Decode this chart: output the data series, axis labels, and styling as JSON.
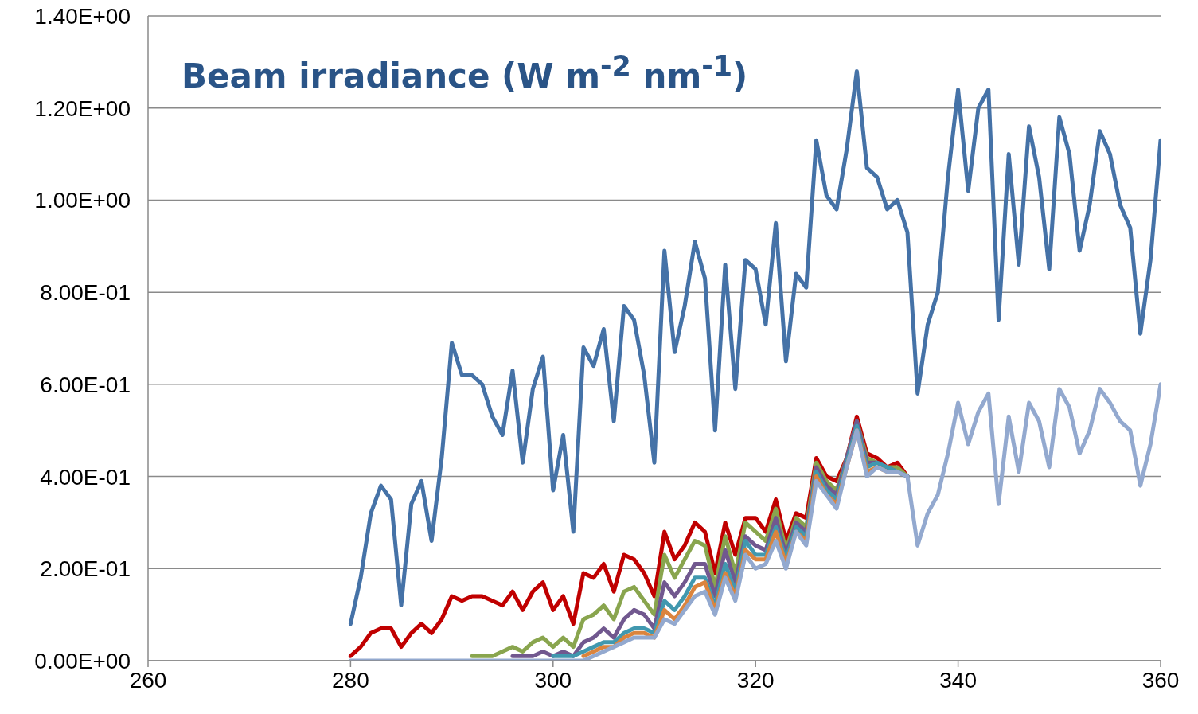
{
  "chart_data": {
    "type": "line",
    "title": "Beam irradiance (W m$^{-2}$ nm$^{-1}$)",
    "x": [
      280,
      281,
      282,
      283,
      284,
      285,
      286,
      287,
      288,
      289,
      290,
      291,
      292,
      293,
      294,
      295,
      296,
      297,
      298,
      299,
      300,
      301,
      302,
      303,
      304,
      305,
      306,
      307,
      308,
      309,
      310,
      311,
      312,
      313,
      314,
      315,
      316,
      317,
      318,
      319,
      320,
      321,
      322,
      323,
      324,
      325,
      326,
      327,
      328,
      329,
      330,
      331,
      332,
      333,
      334,
      335,
      336,
      337,
      338,
      339,
      340,
      341,
      342,
      343,
      344,
      345,
      346,
      347,
      348,
      349,
      350,
      351,
      352,
      353,
      354,
      355,
      356,
      357,
      358,
      359,
      360
    ],
    "xlim": [
      260,
      360
    ],
    "xticks": [
      260,
      280,
      300,
      320,
      340,
      360
    ],
    "ylim": [
      0,
      1.4
    ],
    "yticks": [
      {
        "value": 0,
        "label": "0.00E+00"
      },
      {
        "value": 0.2,
        "label": "2.00E-01"
      },
      {
        "value": 0.4,
        "label": "4.00E-01"
      },
      {
        "value": 0.6,
        "label": "6.00E-01"
      },
      {
        "value": 0.8,
        "label": "8.00E-01"
      },
      {
        "value": 1.0,
        "label": "1.00E+00"
      },
      {
        "value": 1.2,
        "label": "1.20E+00"
      },
      {
        "value": 1.4,
        "label": "1.40E+00"
      }
    ],
    "grid": "y",
    "marker": "none",
    "line_style": "solid",
    "series": [
      {
        "color": "#4572a7",
        "values": [
          0.08,
          0.18,
          0.32,
          0.38,
          0.35,
          0.12,
          0.34,
          0.39,
          0.26,
          0.44,
          0.69,
          0.62,
          0.62,
          0.6,
          0.53,
          0.49,
          0.63,
          0.43,
          0.59,
          0.66,
          0.37,
          0.49,
          0.28,
          0.68,
          0.64,
          0.72,
          0.52,
          0.77,
          0.74,
          0.62,
          0.43,
          0.89,
          0.67,
          0.77,
          0.91,
          0.83,
          0.5,
          0.86,
          0.59,
          0.87,
          0.85,
          0.73,
          0.95,
          0.65,
          0.84,
          0.81,
          1.13,
          1.01,
          0.98,
          1.11,
          1.28,
          1.07,
          1.05,
          0.98,
          1.0,
          0.93,
          0.58,
          0.73,
          0.8,
          1.05,
          1.24,
          1.02,
          1.2,
          1.24,
          0.74,
          1.1,
          0.86,
          1.16,
          1.05,
          0.85,
          1.18,
          1.1,
          0.89,
          0.99,
          1.15,
          1.1,
          0.99,
          0.94,
          0.71,
          0.87,
          1.13
        ]
      },
      {
        "color": "#c00000",
        "values": [
          0.01,
          0.03,
          0.06,
          0.07,
          0.07,
          0.03,
          0.06,
          0.08,
          0.06,
          0.09,
          0.14,
          0.13,
          0.14,
          0.14,
          0.13,
          0.12,
          0.15,
          0.11,
          0.15,
          0.17,
          0.11,
          0.14,
          0.08,
          0.19,
          0.18,
          0.21,
          0.15,
          0.23,
          0.22,
          0.19,
          0.14,
          0.28,
          0.22,
          0.25,
          0.3,
          0.28,
          0.19,
          0.3,
          0.23,
          0.31,
          0.31,
          0.28,
          0.35,
          0.26,
          0.32,
          0.31,
          0.44,
          0.4,
          0.39,
          0.44,
          0.53,
          0.45,
          0.44,
          0.42,
          0.43,
          0.4,
          null,
          null,
          null,
          null,
          null,
          null,
          null,
          null,
          null,
          null,
          null,
          null,
          null,
          null,
          null,
          null,
          null,
          null,
          null,
          null,
          null,
          null,
          null,
          null,
          null
        ]
      },
      {
        "color": "#89a54e",
        "values": [
          null,
          null,
          null,
          null,
          null,
          null,
          null,
          null,
          null,
          null,
          null,
          null,
          0.01,
          0.01,
          0.01,
          0.02,
          0.03,
          0.02,
          0.04,
          0.05,
          0.03,
          0.05,
          0.03,
          0.09,
          0.1,
          0.12,
          0.09,
          0.15,
          0.16,
          0.13,
          0.1,
          0.23,
          0.18,
          0.22,
          0.26,
          0.25,
          0.16,
          0.27,
          0.19,
          0.3,
          0.28,
          0.26,
          0.33,
          0.24,
          0.31,
          0.29,
          0.43,
          0.39,
          0.37,
          0.44,
          0.52,
          0.44,
          0.43,
          0.42,
          0.42,
          0.4,
          null,
          null,
          null,
          null,
          null,
          null,
          null,
          null,
          null,
          null,
          null,
          null,
          null,
          null,
          null,
          null,
          null,
          null,
          null,
          null,
          null,
          null,
          null,
          null,
          null
        ]
      },
      {
        "color": "#71588f",
        "values": [
          null,
          null,
          null,
          null,
          null,
          null,
          null,
          null,
          null,
          null,
          null,
          null,
          null,
          null,
          null,
          null,
          0.01,
          0.01,
          0.01,
          0.02,
          0.01,
          0.02,
          0.01,
          0.04,
          0.05,
          0.07,
          0.05,
          0.09,
          0.11,
          0.1,
          0.07,
          0.17,
          0.14,
          0.17,
          0.21,
          0.21,
          0.14,
          0.24,
          0.17,
          0.27,
          0.25,
          0.24,
          0.31,
          0.23,
          0.3,
          0.28,
          0.42,
          0.38,
          0.36,
          0.44,
          0.52,
          0.43,
          0.43,
          0.42,
          0.41,
          0.4,
          null,
          null,
          null,
          null,
          null,
          null,
          null,
          null,
          null,
          null,
          null,
          null,
          null,
          null,
          null,
          null,
          null,
          null,
          null,
          null,
          null,
          null,
          null,
          null,
          null
        ]
      },
      {
        "color": "#4198af",
        "values": [
          null,
          null,
          null,
          null,
          null,
          null,
          null,
          null,
          null,
          null,
          null,
          null,
          null,
          null,
          null,
          null,
          null,
          null,
          null,
          null,
          0.01,
          0.01,
          0.01,
          0.02,
          0.03,
          0.04,
          0.04,
          0.06,
          0.07,
          0.07,
          0.06,
          0.13,
          0.11,
          0.14,
          0.18,
          0.18,
          0.12,
          0.21,
          0.15,
          0.26,
          0.23,
          0.23,
          0.29,
          0.22,
          0.29,
          0.27,
          0.41,
          0.37,
          0.35,
          0.43,
          0.51,
          0.42,
          0.43,
          0.42,
          0.41,
          0.4,
          null,
          null,
          null,
          null,
          null,
          null,
          null,
          null,
          null,
          null,
          null,
          null,
          null,
          null,
          null,
          null,
          null,
          null,
          null,
          null,
          null,
          null,
          null,
          null,
          null
        ]
      },
      {
        "color": "#db843d",
        "values": [
          null,
          null,
          null,
          null,
          null,
          null,
          null,
          null,
          null,
          null,
          null,
          null,
          null,
          null,
          null,
          null,
          null,
          null,
          null,
          null,
          null,
          null,
          null,
          0.01,
          0.02,
          0.03,
          0.03,
          0.05,
          0.06,
          0.06,
          0.05,
          0.11,
          0.09,
          0.12,
          0.16,
          0.17,
          0.11,
          0.19,
          0.14,
          0.24,
          0.22,
          0.22,
          0.28,
          0.21,
          0.28,
          0.26,
          0.4,
          0.36,
          0.34,
          0.42,
          0.5,
          0.41,
          0.42,
          0.41,
          null,
          null,
          null,
          null,
          null,
          null,
          null,
          null,
          null,
          null,
          null,
          null,
          null,
          null,
          null,
          null,
          null,
          null,
          null,
          null,
          null,
          null,
          null,
          null,
          null,
          null,
          null
        ]
      },
      {
        "color": "#93a9cf",
        "values": [
          0,
          0,
          0,
          0,
          0,
          0,
          0,
          0,
          0,
          0,
          0,
          0,
          0,
          0,
          0,
          0,
          0,
          0,
          0,
          0,
          0,
          0,
          0,
          0,
          0.01,
          0.02,
          0.03,
          0.04,
          0.05,
          0.05,
          0.05,
          0.09,
          0.08,
          0.11,
          0.14,
          0.15,
          0.1,
          0.18,
          0.13,
          0.23,
          0.2,
          0.21,
          0.26,
          0.2,
          0.28,
          0.25,
          0.39,
          0.36,
          0.33,
          0.42,
          0.5,
          0.4,
          0.42,
          0.41,
          0.41,
          0.4,
          0.25,
          0.32,
          0.36,
          0.45,
          0.56,
          0.47,
          0.54,
          0.58,
          0.34,
          0.53,
          0.41,
          0.56,
          0.52,
          0.42,
          0.59,
          0.55,
          0.45,
          0.5,
          0.59,
          0.56,
          0.52,
          0.5,
          0.38,
          0.47,
          0.6
        ]
      }
    ]
  }
}
